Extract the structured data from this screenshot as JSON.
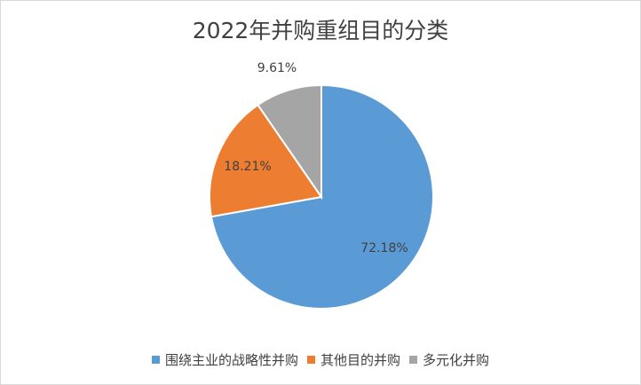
{
  "chart_data": {
    "type": "pie",
    "title": "2022年并购重组目的分类",
    "slices": [
      {
        "label": "围绕主业的战略性并购",
        "value": 72.18,
        "value_label": "72.18%",
        "color": "#5b9bd5"
      },
      {
        "label": "其他目的并购",
        "value": 18.21,
        "value_label": "18.21%",
        "color": "#ed7d31"
      },
      {
        "label": "多元化并购",
        "value": 9.61,
        "value_label": "9.61%",
        "color": "#a5a5a5"
      }
    ],
    "legend_position": "bottom",
    "start_angle": "top, clockwise"
  }
}
